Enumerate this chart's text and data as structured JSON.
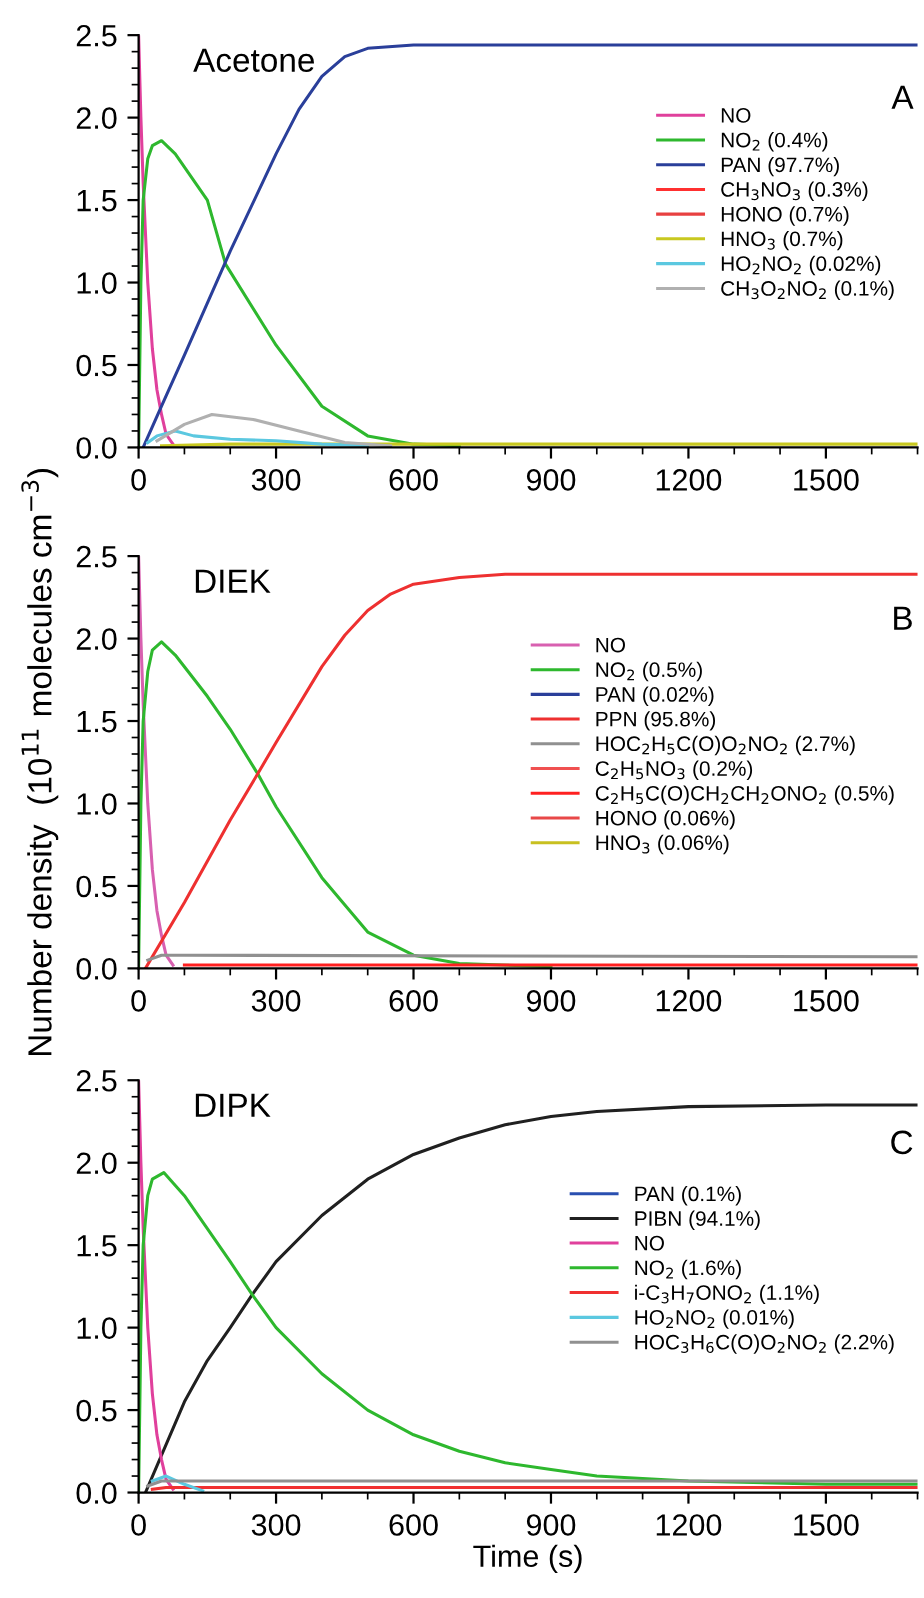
{
  "chart_data": [
    {
      "type": "line",
      "title": "Acetone",
      "annotations": [
        "A"
      ],
      "xlim": [
        0,
        1700
      ],
      "xticks": [
        0,
        300,
        600,
        900,
        1200,
        1500
      ],
      "ylim": [
        0,
        2.5
      ],
      "yticks": [
        {
          "value": 0,
          "label": "0.0"
        },
        0.5,
        {
          "value": 1,
          "label": "1.0"
        },
        1.5,
        {
          "value": 2,
          "label": "2.0"
        },
        2.5
      ],
      "grid": false,
      "legend": "upper right",
      "line_style": "solid",
      "series": [
        {
          "name": "NO",
          "color": "#e0409c",
          "x": [
            0,
            5,
            10,
            20,
            30,
            40,
            50,
            60,
            75
          ],
          "values": [
            2.5,
            2.0,
            1.6,
            1.0,
            0.6,
            0.35,
            0.2,
            0.08,
            0.02
          ]
        },
        {
          "name": "NO$_{2}$ (0.4%)",
          "color": "#2eb82e",
          "x": [
            0,
            5,
            10,
            20,
            30,
            50,
            80,
            150,
            190,
            300,
            400,
            500,
            600,
            700
          ],
          "values": [
            0,
            1.0,
            1.5,
            1.75,
            1.83,
            1.86,
            1.78,
            1.5,
            1.11,
            0.62,
            0.25,
            0.07,
            0.02,
            0.01
          ]
        },
        {
          "name": "PAN (97.7%)",
          "color": "#2a3f9a",
          "x": [
            10,
            50,
            100,
            200,
            300,
            350,
            400,
            450,
            500,
            600,
            1700
          ],
          "values": [
            0,
            0.25,
            0.56,
            1.19,
            1.78,
            2.05,
            2.25,
            2.37,
            2.42,
            2.44,
            2.44
          ]
        },
        {
          "name": "CH$_{3}$NO$_{3}$ (0.3%)",
          "color": "#ff3030"
        },
        {
          "name": "HONO (0.7%)",
          "color": "#e84040"
        },
        {
          "name": "HNO$_{3}$ (0.7%)",
          "color": "#c8c820",
          "x": [
            50,
            200,
            1700
          ],
          "values": [
            0.01,
            0.02,
            0.02
          ]
        },
        {
          "name": "HO$_{2}$NO$_{2}$ (0.02%)",
          "color": "#5bc8e0",
          "x": [
            20,
            40,
            80,
            120,
            200,
            300,
            400,
            500
          ],
          "values": [
            0.03,
            0.07,
            0.1,
            0.07,
            0.05,
            0.04,
            0.02,
            0.01
          ]
        },
        {
          "name": "CH$_{3}$O$_{2}$NO$_{2}$ (0.1%)",
          "color": "#b0b0b0",
          "x": [
            40,
            100,
            160,
            250,
            350,
            450,
            550
          ],
          "values": [
            0.04,
            0.14,
            0.2,
            0.17,
            0.1,
            0.03,
            0.01
          ]
        }
      ]
    },
    {
      "type": "line",
      "title": "DIEK",
      "annotations": [
        "B"
      ],
      "ylabel": "Number density  (10$^{11}$ molecules cm$^{−3}$)",
      "xlim": [
        0,
        1700
      ],
      "xticks": [
        0,
        300,
        600,
        900,
        1200,
        1500
      ],
      "ylim": [
        0,
        2.5
      ],
      "yticks": [
        {
          "value": 0,
          "label": "0.0"
        },
        0.5,
        {
          "value": 1,
          "label": "1.0"
        },
        1.5,
        {
          "value": 2,
          "label": "2.0"
        },
        2.5
      ],
      "grid": false,
      "legend": "right",
      "line_style": "solid",
      "series": [
        {
          "name": "NO",
          "color": "#d860b0",
          "x": [
            0,
            5,
            10,
            20,
            30,
            40,
            50,
            60,
            75
          ],
          "values": [
            2.5,
            2.0,
            1.6,
            1.0,
            0.6,
            0.35,
            0.2,
            0.08,
            0.02
          ]
        },
        {
          "name": "NO$_{2}$ (0.5%)",
          "color": "#2eb82e",
          "x": [
            0,
            5,
            10,
            20,
            30,
            50,
            80,
            150,
            200,
            260,
            300,
            400,
            500,
            600,
            700,
            900
          ],
          "values": [
            0,
            1.0,
            1.5,
            1.8,
            1.93,
            1.98,
            1.9,
            1.65,
            1.45,
            1.18,
            0.98,
            0.55,
            0.22,
            0.08,
            0.03,
            0.01
          ]
        },
        {
          "name": "PAN (0.02%)",
          "color": "#2a3f9a"
        },
        {
          "name": "PPN (95.8%)",
          "color": "#ee3030",
          "x": [
            15,
            100,
            200,
            260,
            300,
            400,
            450,
            500,
            550,
            600,
            700,
            800,
            1700
          ],
          "values": [
            0,
            0.4,
            0.9,
            1.18,
            1.37,
            1.83,
            2.02,
            2.17,
            2.27,
            2.33,
            2.37,
            2.39,
            2.39
          ]
        },
        {
          "name": "HOC$_{2}$H$_{5}$C(O)O$_{2}$NO$_{2}$ (2.7%)",
          "color": "#909090",
          "x": [
            20,
            50,
            100,
            1700
          ],
          "values": [
            0.05,
            0.08,
            0.08,
            0.07
          ]
        },
        {
          "name": "C$_{2}$H$_{5}$NO$_{3}$ (0.2%)",
          "color": "#f05050"
        },
        {
          "name": "C$_{2}$H$_{5}$C(O)CH$_{2}$CH$_{2}$ONO$_{2}$ (0.5%)",
          "color": "#ff2020",
          "x": [
            100,
            1700
          ],
          "values": [
            0.02,
            0.02
          ]
        },
        {
          "name": "HONO (0.06%)",
          "color": "#e84848"
        },
        {
          "name": "HNO$_{3}$ (0.06%)",
          "color": "#c8c020"
        }
      ]
    },
    {
      "type": "line",
      "title": "DIPK",
      "annotations": [
        "C"
      ],
      "xlabel": "Time (s)",
      "xlim": [
        0,
        1700
      ],
      "xticks": [
        0,
        300,
        600,
        900,
        1200,
        1500
      ],
      "ylim": [
        0,
        2.5
      ],
      "yticks": [
        {
          "value": 0,
          "label": "0.0"
        },
        0.5,
        {
          "value": 1,
          "label": "1.0"
        },
        1.5,
        {
          "value": 2,
          "label": "2.0"
        },
        2.5
      ],
      "grid": false,
      "legend": "right",
      "line_style": "solid",
      "series": [
        {
          "name": "PAN (0.1%)",
          "color": "#2a4fb0"
        },
        {
          "name": "PIBN (94.1%)",
          "color": "#202020",
          "x": [
            15,
            100,
            150,
            200,
            248,
            300,
            400,
            500,
            600,
            700,
            800,
            900,
            1000,
            1200,
            1500,
            1700
          ],
          "values": [
            0,
            0.55,
            0.8,
            1.0,
            1.2,
            1.4,
            1.68,
            1.9,
            2.05,
            2.15,
            2.23,
            2.28,
            2.31,
            2.34,
            2.35,
            2.35
          ]
        },
        {
          "name": "NO",
          "color": "#e0409c",
          "x": [
            0,
            5,
            10,
            20,
            30,
            40,
            50,
            60,
            75
          ],
          "values": [
            2.5,
            2.0,
            1.6,
            1.0,
            0.6,
            0.35,
            0.2,
            0.08,
            0.02
          ]
        },
        {
          "name": "NO$_{2}$ (1.6%)",
          "color": "#2eb82e",
          "x": [
            0,
            5,
            10,
            20,
            30,
            55,
            100,
            150,
            200,
            248,
            300,
            400,
            500,
            600,
            700,
            800,
            900,
            1000,
            1200,
            1500,
            1700
          ],
          "values": [
            0,
            1.0,
            1.5,
            1.8,
            1.9,
            1.94,
            1.8,
            1.6,
            1.4,
            1.2,
            1.0,
            0.72,
            0.5,
            0.35,
            0.25,
            0.18,
            0.14,
            0.1,
            0.07,
            0.05,
            0.05
          ]
        },
        {
          "name": "i-C$_{3}$H$_{7}$ONO$_{2}$ (1.1%)",
          "color": "#f03030",
          "x": [
            30,
            60,
            1700
          ],
          "values": [
            0.02,
            0.03,
            0.03
          ]
        },
        {
          "name": "HO$_{2}$NO$_{2}$ (0.01%)",
          "color": "#5bc8e0",
          "x": [
            30,
            60,
            100,
            140
          ],
          "values": [
            0.07,
            0.1,
            0.05,
            0.01
          ]
        },
        {
          "name": "HOC$_{3}$H$_{6}$C(O)O$_{2}$NO$_{2}$ (2.2%)",
          "color": "#909090",
          "x": [
            20,
            50,
            100,
            1700
          ],
          "values": [
            0.04,
            0.07,
            0.07,
            0.07
          ]
        }
      ]
    }
  ]
}
